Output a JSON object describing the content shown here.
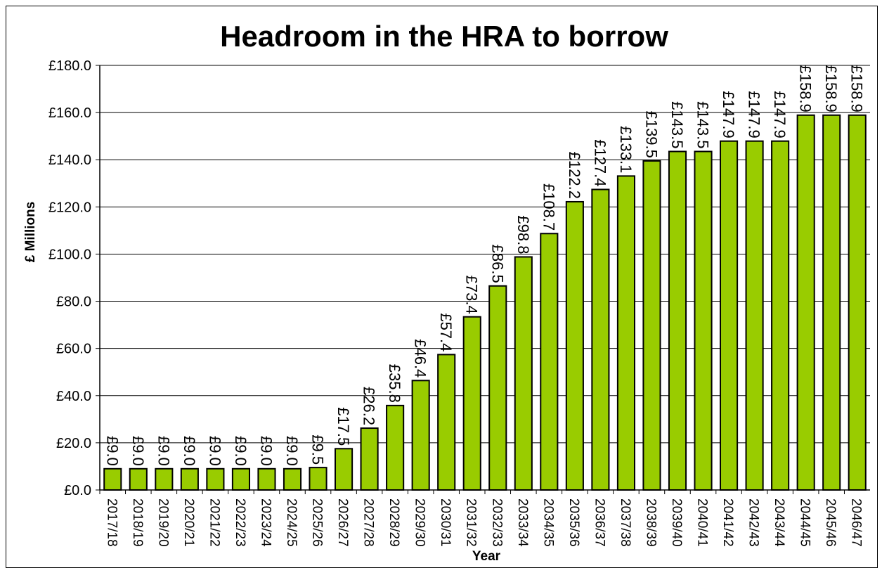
{
  "chart_data": {
    "type": "bar",
    "title": "Headroom in the HRA to borrow",
    "xlabel": "Year",
    "ylabel": "£ Millions",
    "ylim": [
      0,
      180
    ],
    "yticks": [
      "£0.0",
      "£20.0",
      "£40.0",
      "£60.0",
      "£80.0",
      "£100.0",
      "£120.0",
      "£140.0",
      "£160.0",
      "£180.0"
    ],
    "grid": true,
    "bar_color": "#99cc00",
    "categories": [
      "2017/18",
      "2018/19",
      "2019/20",
      "2020/21",
      "2021/22",
      "2022/23",
      "2023/24",
      "2024/25",
      "2025/26",
      "2026/27",
      "2027/28",
      "2028/29",
      "2029/30",
      "2030/31",
      "2031/32",
      "2032/33",
      "2033/34",
      "2034/35",
      "2035/36",
      "2036/37",
      "2037/38",
      "2038/39",
      "2039/40",
      "2040/41",
      "2041/42",
      "2042/43",
      "2043/44",
      "2044/45",
      "2045/46",
      "2046/47"
    ],
    "values": [
      9.0,
      9.0,
      9.0,
      9.0,
      9.0,
      9.0,
      9.0,
      9.0,
      9.5,
      17.5,
      26.2,
      35.8,
      46.4,
      57.4,
      73.4,
      86.5,
      98.8,
      108.7,
      122.2,
      127.4,
      133.1,
      139.5,
      143.5,
      143.5,
      147.9,
      147.9,
      147.9,
      158.9,
      158.9,
      158.9
    ],
    "data_labels": [
      "£9.0",
      "£9.0",
      "£9.0",
      "£9.0",
      "£9.0",
      "£9.0",
      "£9.0",
      "£9.0",
      "£9.5",
      "£17.5",
      "£26.2",
      "£35.8",
      "£46.4",
      "£57.4",
      "£73.4",
      "£86.5",
      "£98.8",
      "£108.7",
      "£122.2",
      "£127.4",
      "£133.1",
      "£139.5",
      "£143.5",
      "£143.5",
      "£147.9",
      "£147.9",
      "£147.9",
      "£158.9",
      "£158.9",
      "£158.9"
    ]
  }
}
